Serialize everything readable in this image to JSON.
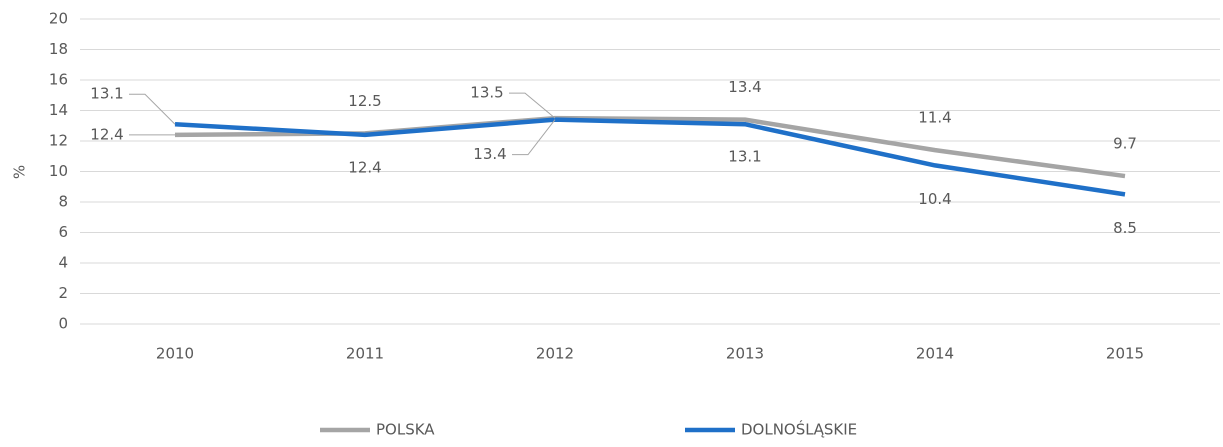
{
  "chart_data": {
    "type": "line",
    "y_label": "%",
    "categories": [
      "2010",
      "2011",
      "2012",
      "2013",
      "2014",
      "2015"
    ],
    "series": [
      {
        "name": "POLSKA",
        "color": "#a5a5a5",
        "values": [
          12.4,
          12.5,
          13.5,
          13.4,
          11.4,
          9.7
        ]
      },
      {
        "name": "DOLNOŚLĄSKIE",
        "color": "#1f70c8",
        "values": [
          13.1,
          12.4,
          13.4,
          13.1,
          10.4,
          8.5
        ]
      }
    ],
    "ylim": [
      0,
      20
    ],
    "yticks": [
      0,
      2,
      4,
      6,
      8,
      10,
      12,
      14,
      16,
      18,
      20
    ],
    "grid": true,
    "legend": "bottom"
  }
}
